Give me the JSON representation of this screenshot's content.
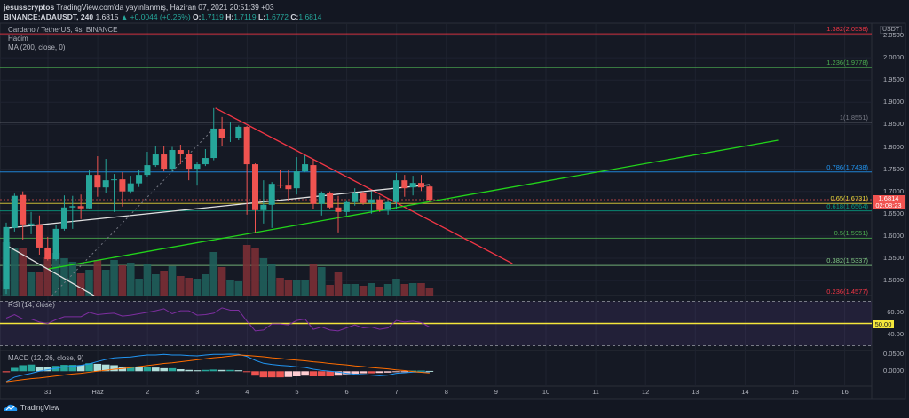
{
  "header": {
    "username": "jesusscryptos",
    "published": "TradingView.com'da yayınlanmış, Haziran 07, 2021 20:51:39 +03",
    "symbol": "BINANCE:ADAUSDT, 240",
    "last": "1.6815",
    "change": "▲ +0.0044 (+0.26%)",
    "o_label": "O:",
    "o": "1.7119",
    "h_label": "H:",
    "h": "1.7119",
    "l_label": "L:",
    "l": "1.6772",
    "c_label": "C:",
    "c": "1.6814"
  },
  "legend": {
    "title": "Cardano / TetherUS, 4s, BINANCE",
    "volume": "Hacim",
    "ma": "MA (200, close, 0)",
    "rsi": "RSI (14, close)",
    "macd": "MACD (12, 26, close, 9)"
  },
  "price_axis": {
    "currency": "USDT",
    "ticks": [
      "2.0500",
      "2.0000",
      "1.9500",
      "1.9000",
      "1.8500",
      "1.8000",
      "1.7500",
      "1.7000",
      "1.6500",
      "1.6000",
      "1.5500",
      "1.5000"
    ],
    "current_price": "1.6814",
    "countdown": "02:08:23"
  },
  "rsi_axis": {
    "ticks": [
      "60.00",
      "40.00"
    ],
    "midline": "50.00"
  },
  "macd_axis": {
    "ticks": [
      "0.0500",
      "0.0000"
    ]
  },
  "time_axis": [
    "31",
    "Haz",
    "2",
    "3",
    "4",
    "5",
    "6",
    "7",
    "8",
    "9",
    "10",
    "11",
    "12",
    "13",
    "14",
    "15",
    "16"
  ],
  "footer": {
    "brand": "TradingView"
  },
  "colors": {
    "up": "#26a69a",
    "down": "#ef5350",
    "bg": "#131722",
    "grid": "#1f2330",
    "rsi": "#7e2ea0",
    "macd": "#2196f3",
    "signal": "#ff6d00"
  },
  "fib_levels": [
    {
      "label": "1.382(2.0538)",
      "price": 2.0538,
      "color": "#f23645"
    },
    {
      "label": "1.236(1.9778)",
      "price": 1.9778,
      "color": "#4caf50"
    },
    {
      "label": "1(1.8551)",
      "price": 1.8551,
      "color": "#787b86"
    },
    {
      "label": "0.786(1.7438)",
      "price": 1.7438,
      "color": "#2196f3"
    },
    {
      "label": "0.65(1.6731)",
      "price": 1.6731,
      "color": "#e8d63a"
    },
    {
      "label": "0.618(1.6564)",
      "price": 1.6564,
      "color": "#089981"
    },
    {
      "label": "0.5(1.5951)",
      "price": 1.5951,
      "color": "#4caf50"
    },
    {
      "label": "0.382(1.5337)",
      "price": 1.5337,
      "color": "#81c784"
    },
    {
      "label": "0.236(1.4577)",
      "price": 1.4577,
      "color": "#f23645"
    }
  ],
  "chart_data": {
    "type": "candlestick",
    "symbol": "ADAUSDT",
    "interval": "4h",
    "ylim": [
      1.45,
      2.07
    ],
    "candles": [
      [
        1.48,
        1.63,
        1.47,
        1.62
      ],
      [
        1.618,
        1.695,
        1.61,
        1.69
      ],
      [
        1.692,
        1.7,
        1.592,
        1.626
      ],
      [
        1.626,
        1.654,
        1.604,
        1.628
      ],
      [
        1.626,
        1.646,
        1.558,
        1.574
      ],
      [
        1.574,
        1.598,
        1.545,
        1.548
      ],
      [
        1.548,
        1.625,
        1.545,
        1.616
      ],
      [
        1.616,
        1.691,
        1.612,
        1.664
      ],
      [
        1.664,
        1.69,
        1.616,
        1.667
      ],
      [
        1.667,
        1.693,
        1.638,
        1.662
      ],
      [
        1.662,
        1.747,
        1.66,
        1.737
      ],
      [
        1.737,
        1.779,
        1.688,
        1.709
      ],
      [
        1.709,
        1.773,
        1.697,
        1.725
      ],
      [
        1.725,
        1.739,
        1.654,
        1.727
      ],
      [
        1.727,
        1.743,
        1.666,
        1.7
      ],
      [
        1.7,
        1.735,
        1.695,
        1.718
      ],
      [
        1.718,
        1.749,
        1.71,
        1.737
      ],
      [
        1.737,
        1.789,
        1.733,
        1.759
      ],
      [
        1.759,
        1.801,
        1.755,
        1.783
      ],
      [
        1.783,
        1.801,
        1.745,
        1.751
      ],
      [
        1.751,
        1.8,
        1.745,
        1.793
      ],
      [
        1.793,
        1.805,
        1.761,
        1.785
      ],
      [
        1.785,
        1.793,
        1.725,
        1.751
      ],
      [
        1.751,
        1.765,
        1.713,
        1.761
      ],
      [
        1.761,
        1.795,
        1.757,
        1.775
      ],
      [
        1.775,
        1.887,
        1.77,
        1.841
      ],
      [
        1.841,
        1.867,
        1.801,
        1.819
      ],
      [
        1.819,
        1.855,
        1.811,
        1.821
      ],
      [
        1.819,
        1.848,
        1.815,
        1.845
      ],
      [
        1.845,
        1.847,
        1.648,
        1.761
      ],
      [
        1.761,
        1.763,
        1.608,
        1.658
      ],
      [
        1.658,
        1.725,
        1.628,
        1.67
      ],
      [
        1.67,
        1.721,
        1.618,
        1.717
      ],
      [
        1.715,
        1.749,
        1.707,
        1.713
      ],
      [
        1.713,
        1.749,
        1.678,
        1.705
      ],
      [
        1.707,
        1.777,
        1.693,
        1.745
      ],
      [
        1.745,
        1.781,
        1.743,
        1.761
      ],
      [
        1.759,
        1.773,
        1.661,
        1.672
      ],
      [
        1.672,
        1.7,
        1.646,
        1.696
      ],
      [
        1.696,
        1.7,
        1.66,
        1.664
      ],
      [
        1.664,
        1.69,
        1.608,
        1.654
      ],
      [
        1.654,
        1.68,
        1.646,
        1.676
      ],
      [
        1.676,
        1.707,
        1.668,
        1.696
      ],
      [
        1.696,
        1.7,
        1.67,
        1.674
      ],
      [
        1.674,
        1.7,
        1.65,
        1.682
      ],
      [
        1.682,
        1.69,
        1.654,
        1.658
      ],
      [
        1.658,
        1.68,
        1.648,
        1.676
      ],
      [
        1.676,
        1.741,
        1.661,
        1.725
      ],
      [
        1.725,
        1.737,
        1.688,
        1.707
      ],
      [
        1.709,
        1.735,
        1.691,
        1.719
      ],
      [
        1.719,
        1.737,
        1.701,
        1.709
      ],
      [
        1.711,
        1.713,
        1.677,
        1.681
      ]
    ],
    "volume_relative": [
      60,
      53,
      54,
      27,
      27,
      43,
      48,
      42,
      38,
      25,
      29,
      40,
      29,
      40,
      34,
      37,
      19,
      35,
      24,
      28,
      33,
      22,
      20,
      19,
      24,
      49,
      32,
      18,
      16,
      57,
      53,
      42,
      36,
      20,
      17,
      17,
      17,
      35,
      32,
      12,
      27,
      13,
      13,
      11,
      14,
      10,
      13,
      19,
      13,
      14,
      14,
      9
    ],
    "rsi": [
      54.8,
      58,
      54,
      54,
      51.3,
      50,
      53.5,
      56.1,
      56.1,
      56.1,
      60.1,
      58,
      58.8,
      59.3,
      56.7,
      57.5,
      58.8,
      60.1,
      61.5,
      63.3,
      58.8,
      61.5,
      61.5,
      57.5,
      58,
      59.3,
      64.1,
      62,
      62,
      52.1,
      43.3,
      44.1,
      49.5,
      49.5,
      48.7,
      52.7,
      54,
      44.7,
      46.8,
      44.1,
      43.3,
      46,
      48.7,
      46,
      46.8,
      44.7,
      46,
      52.7,
      51.3,
      52.1,
      50.8,
      46.8
    ],
    "rsi_bands": [
      70,
      30
    ],
    "macd": [
      -0.0307,
      -0.0175,
      -0.0114,
      -0.0061,
      0,
      0.0044,
      0.0088,
      0.0132,
      0.0149,
      0.0175,
      0.0219,
      0.0289,
      0.0351,
      0.0395,
      0.0412,
      0.0421,
      0.0456,
      0.0482,
      0.0482,
      0.05,
      0.0482,
      0.0482,
      0.0465,
      0.0456,
      0.0482,
      0.05,
      0.05,
      0.0509,
      0.05,
      0.0439,
      0.0324,
      0.0237,
      0.0202,
      0.0175,
      0.0158,
      0.0132,
      0.0114,
      0.0061,
      0.0026,
      0,
      -0.0026,
      -0.0061,
      -0.0088,
      -0.0096,
      -0.0114,
      -0.0132,
      -0.0114,
      -0.0061,
      -0.0044,
      -0.0026,
      -0.0026,
      -0.0026
    ],
    "signal": [
      -0.031,
      -0.028,
      -0.025,
      -0.022,
      -0.02,
      -0.017,
      -0.014,
      -0.011,
      -0.008,
      -0.006,
      -0.003,
      0,
      0.003,
      0.006,
      0.008,
      0.011,
      0.014,
      0.017,
      0.02,
      0.023,
      0.025,
      0.028,
      0.031,
      0.034,
      0.037,
      0.04,
      0.042,
      0.045,
      0.048,
      0.047,
      0.045,
      0.043,
      0.04,
      0.038,
      0.035,
      0.033,
      0.031,
      0.028,
      0.026,
      0.023,
      0.021,
      0.019,
      0.016,
      0.014,
      0.011,
      0.009,
      0.007,
      0.004,
      0.002,
      -0.001,
      -0.003,
      -0.005
    ],
    "histogram": [
      -0.003,
      0.01,
      0.018,
      0.02,
      0.014,
      0.012,
      0.016,
      0.019,
      0.019,
      0.018,
      0.024,
      0.022,
      0.02,
      0.018,
      0.014,
      0.014,
      0.012,
      0.012,
      0.011,
      0.009,
      0.009,
      0.006,
      0.004,
      0.003,
      0.004,
      0.005,
      0.004,
      0.004,
      0.003,
      -0.002,
      -0.013,
      -0.018,
      -0.018,
      -0.018,
      -0.017,
      -0.015,
      -0.013,
      -0.015,
      -0.015,
      -0.015,
      -0.013,
      -0.009,
      -0.007,
      -0.006,
      -0.006,
      -0.005,
      -0.004,
      -0.002,
      -0.001,
      0.002,
      0.002,
      0.001
    ],
    "drawings": [
      {
        "name": "downtrend-line",
        "color": "#f23645",
        "points": [
          [
            25.2,
            1.887
          ],
          [
            61,
            1.538
          ]
        ]
      },
      {
        "name": "uptrend-line",
        "color": "#22d41a",
        "points": [
          [
            5.1,
            1.526
          ],
          [
            93,
            1.815
          ]
        ]
      },
      {
        "name": "ma200-line",
        "color": "#e0e0e0",
        "points": [
          [
            0.3,
            1.618
          ],
          [
            25.5,
            1.666
          ],
          [
            51,
            1.715
          ]
        ]
      },
      {
        "name": "white-diagonal-line",
        "color": "#e0e0e0",
        "points": [
          [
            0.3,
            1.576
          ],
          [
            10.6,
            1.466
          ]
        ]
      },
      {
        "name": "dashed-projection-line",
        "color": "#787b86",
        "dashed": true,
        "points": [
          [
            5.5,
            1.466
          ],
          [
            25,
            1.841
          ]
        ]
      }
    ]
  }
}
